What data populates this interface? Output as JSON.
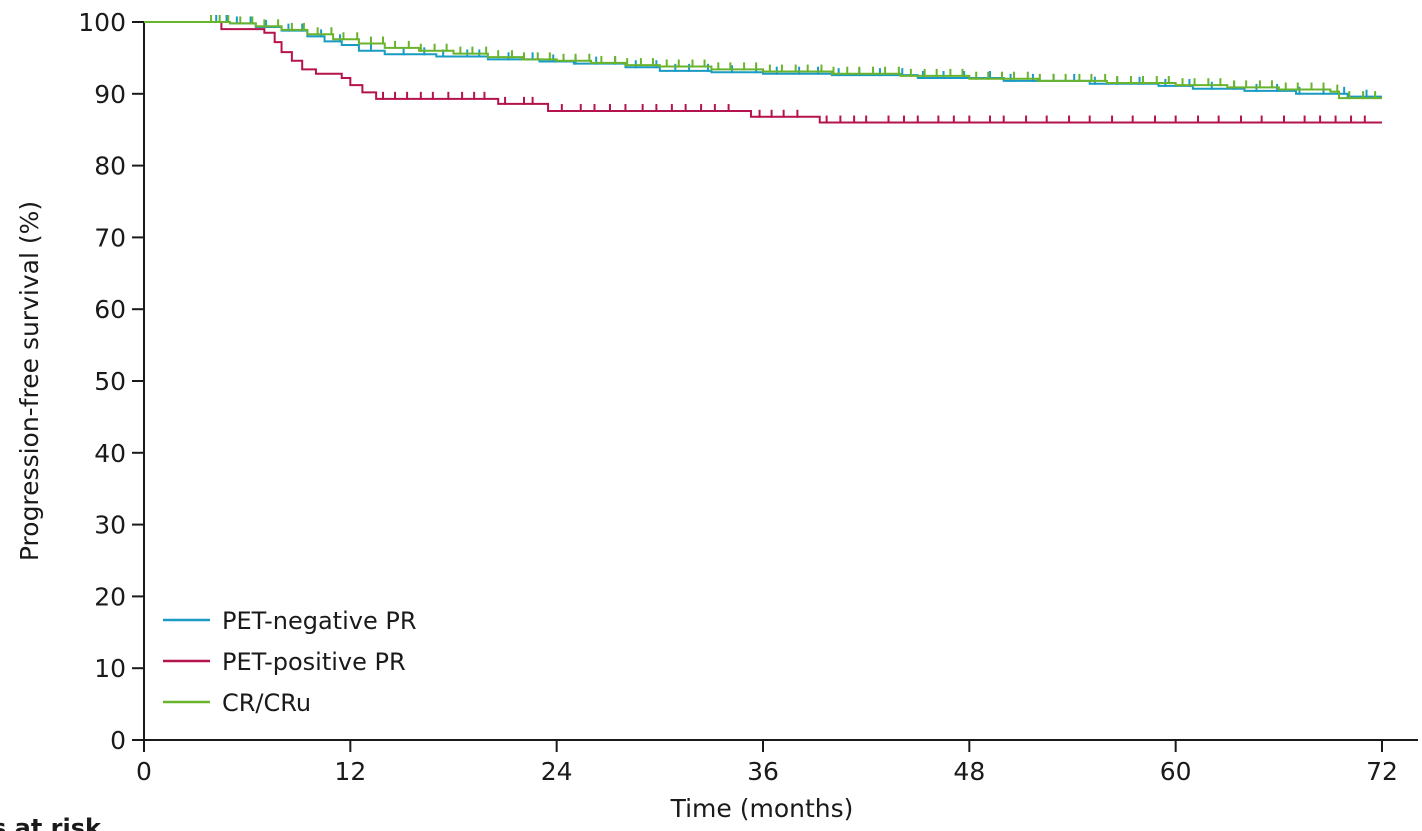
{
  "chart_data": {
    "type": "line",
    "title": "",
    "xlabel": "Time (months)",
    "ylabel": "Progression-free survival (%)",
    "xlim": [
      0,
      72
    ],
    "ylim": [
      0,
      100
    ],
    "xticks": [
      "0",
      "12",
      "24",
      "36",
      "48",
      "60",
      "72"
    ],
    "yticks": [
      "0",
      "10",
      "20",
      "30",
      "40",
      "50",
      "60",
      "70",
      "80",
      "90",
      "100"
    ],
    "grid": false,
    "legend_position": "bottom-left",
    "footer_label": "s at risk",
    "series": [
      {
        "name": "PET-negative PR",
        "color": "#1a9bc4",
        "points": [
          [
            0,
            100
          ],
          [
            4,
            100
          ],
          [
            5,
            99.8
          ],
          [
            6.5,
            99.3
          ],
          [
            8,
            98.8
          ],
          [
            9.5,
            98
          ],
          [
            10.5,
            97.3
          ],
          [
            11.5,
            96.8
          ],
          [
            12.5,
            96
          ],
          [
            14,
            95.5
          ],
          [
            17,
            95.2
          ],
          [
            20,
            94.8
          ],
          [
            23,
            94.5
          ],
          [
            25,
            94.2
          ],
          [
            28,
            93.7
          ],
          [
            30,
            93.2
          ],
          [
            33,
            93
          ],
          [
            36,
            92.8
          ],
          [
            40,
            92.6
          ],
          [
            45,
            92.2
          ],
          [
            50,
            91.8
          ],
          [
            55,
            91.4
          ],
          [
            59,
            91.1
          ],
          [
            61,
            90.7
          ],
          [
            64,
            90.4
          ],
          [
            67,
            90
          ],
          [
            70,
            89.6
          ],
          [
            72,
            89.6
          ]
        ],
        "censors": [
          4.2,
          4.8,
          5.4,
          6.2,
          7.1,
          8.4,
          9.2,
          10.3,
          11.4,
          13.2,
          15.1,
          16.3,
          17.4,
          18.8,
          19.5,
          21.2,
          22.6,
          23.8,
          25.1,
          26.3,
          27.4,
          28.6,
          29.8,
          30.9,
          31.7,
          32.8,
          34.2,
          35.6,
          36.8,
          38.1,
          39.2,
          40.4,
          41.6,
          42.8,
          44.1,
          45.3,
          46.5,
          47.7,
          49.2,
          50.4,
          51.7,
          52.9,
          54.1,
          55.3,
          56.6,
          57.9,
          59.4,
          60.8,
          62.1,
          63.4,
          64.7,
          65.9,
          67.2,
          68.6,
          69.8,
          71.1
        ]
      },
      {
        "name": "PET-positive PR",
        "color": "#b5134d",
        "points": [
          [
            0,
            100
          ],
          [
            4,
            100
          ],
          [
            4.5,
            99
          ],
          [
            6.5,
            99
          ],
          [
            7,
            98.5
          ],
          [
            7.6,
            97.2
          ],
          [
            8,
            95.8
          ],
          [
            8.6,
            94.6
          ],
          [
            9.2,
            93.4
          ],
          [
            10,
            92.8
          ],
          [
            11.5,
            92.2
          ],
          [
            12,
            91.2
          ],
          [
            12.7,
            90.2
          ],
          [
            13.5,
            89.3
          ],
          [
            20,
            89.3
          ],
          [
            20.6,
            88.6
          ],
          [
            23,
            88.6
          ],
          [
            23.5,
            87.6
          ],
          [
            34.8,
            87.6
          ],
          [
            35.3,
            86.8
          ],
          [
            38.8,
            86.8
          ],
          [
            39.3,
            86
          ],
          [
            72,
            86
          ]
        ],
        "censors": [
          13.9,
          14.6,
          15.3,
          16.1,
          16.8,
          17.7,
          18.5,
          19.2,
          19.8,
          21.0,
          22.1,
          22.6,
          24.3,
          25.4,
          26.2,
          27.1,
          28.0,
          29.0,
          29.8,
          30.7,
          31.5,
          32.4,
          33.2,
          34.0,
          35.8,
          36.5,
          37.2,
          38.0,
          39.7,
          40.5,
          41.3,
          42.0,
          43.3,
          44.2,
          45.0,
          46.2,
          47.1,
          48.0,
          49.2,
          50.0,
          51.3,
          52.5,
          53.8,
          55.0,
          56.3,
          57.5,
          58.8,
          60.0,
          61.3,
          62.5,
          63.8,
          65.0,
          66.3,
          67.5,
          68.4,
          69.3,
          70.2,
          71.0
        ]
      },
      {
        "name": "CR/CRu",
        "color": "#6ab42d",
        "points": [
          [
            0,
            100
          ],
          [
            4,
            100
          ],
          [
            5,
            99.8
          ],
          [
            6.5,
            99.4
          ],
          [
            8,
            98.9
          ],
          [
            9.5,
            98.3
          ],
          [
            11,
            97.6
          ],
          [
            12.5,
            97
          ],
          [
            14,
            96.4
          ],
          [
            16,
            96
          ],
          [
            18,
            95.6
          ],
          [
            20,
            95.1
          ],
          [
            22,
            94.8
          ],
          [
            24,
            94.6
          ],
          [
            26,
            94.3
          ],
          [
            28,
            94
          ],
          [
            30,
            93.8
          ],
          [
            33,
            93.4
          ],
          [
            36,
            93.1
          ],
          [
            40,
            92.8
          ],
          [
            44,
            92.5
          ],
          [
            48,
            92.1
          ],
          [
            52,
            91.8
          ],
          [
            56,
            91.5
          ],
          [
            60,
            91.2
          ],
          [
            63,
            90.9
          ],
          [
            66,
            90.6
          ],
          [
            69,
            90.3
          ],
          [
            69.5,
            89.4
          ],
          [
            72,
            89.4
          ]
        ],
        "censors": [
          3.9,
          4.4,
          4.9,
          5.6,
          6.3,
          7.0,
          7.8,
          8.6,
          9.3,
          10.1,
          10.9,
          11.6,
          12.4,
          13.2,
          13.9,
          14.6,
          15.4,
          16.1,
          16.9,
          17.6,
          18.4,
          19.1,
          19.9,
          20.6,
          21.4,
          22.1,
          22.9,
          23.6,
          24.4,
          25.1,
          25.9,
          26.6,
          27.4,
          28.1,
          28.9,
          29.6,
          30.4,
          31.1,
          31.9,
          32.6,
          33.4,
          34.1,
          34.9,
          35.6,
          36.4,
          37.1,
          37.9,
          38.6,
          39.4,
          40.1,
          40.9,
          41.6,
          42.4,
          43.1,
          43.9,
          44.6,
          45.4,
          46.1,
          46.9,
          47.6,
          48.4,
          49.1,
          49.9,
          50.6,
          51.4,
          52.1,
          52.9,
          53.6,
          54.4,
          55.1,
          55.9,
          56.6,
          57.4,
          58.1,
          58.9,
          59.6,
          60.4,
          61.1,
          61.9,
          62.6,
          63.4,
          64.1,
          64.9,
          65.6,
          66.4,
          67.1,
          67.9,
          68.6,
          69.4,
          70.1,
          70.9,
          71.6
        ]
      }
    ]
  }
}
